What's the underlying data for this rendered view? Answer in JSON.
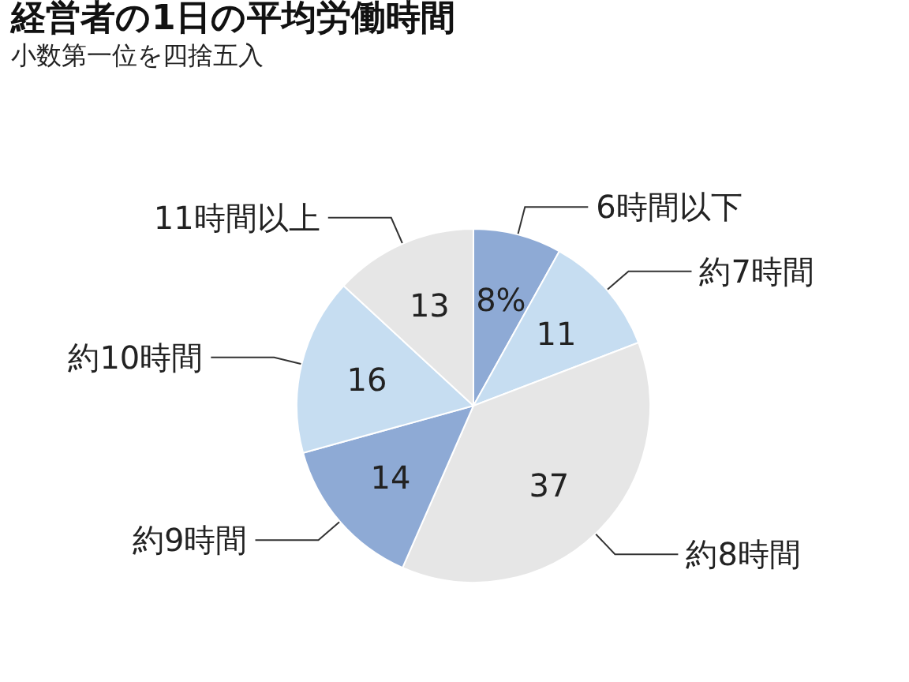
{
  "chart_data": {
    "type": "pie",
    "title": "経営者の1日の平均労働時間",
    "subtitle": "小数第一位を四捨五入",
    "categories": [
      "6時間以下",
      "約7時間",
      "約8時間",
      "約9時間",
      "約10時間",
      "11時間以上"
    ],
    "values": [
      8,
      11,
      37,
      14,
      16,
      13
    ],
    "value_labels": [
      "8%",
      "11",
      "37",
      "14",
      "16",
      "13"
    ],
    "colors": [
      "#8eaad5",
      "#c6ddf1",
      "#e6e6e6",
      "#8eaad5",
      "#c6ddf1",
      "#e6e6e6"
    ],
    "legend": false
  }
}
